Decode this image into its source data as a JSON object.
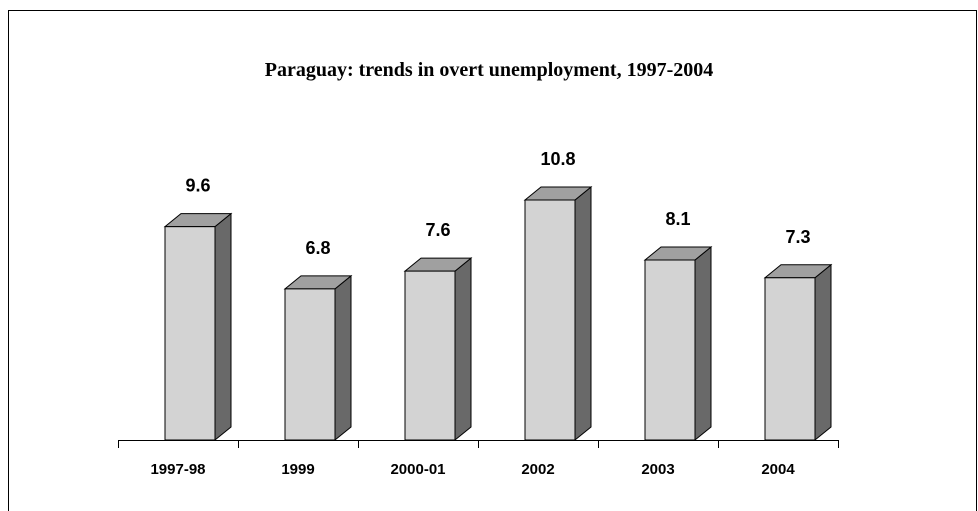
{
  "chart_data": {
    "type": "bar",
    "title": "Paraguay: trends in overt unemployment, 1997-2004",
    "categories": [
      "1997-98",
      "1999",
      "2000-01",
      "2002",
      "2003",
      "2004"
    ],
    "values": [
      9.6,
      6.8,
      7.6,
      10.8,
      8.1,
      7.3
    ],
    "color": "#d3d3d3"
  }
}
